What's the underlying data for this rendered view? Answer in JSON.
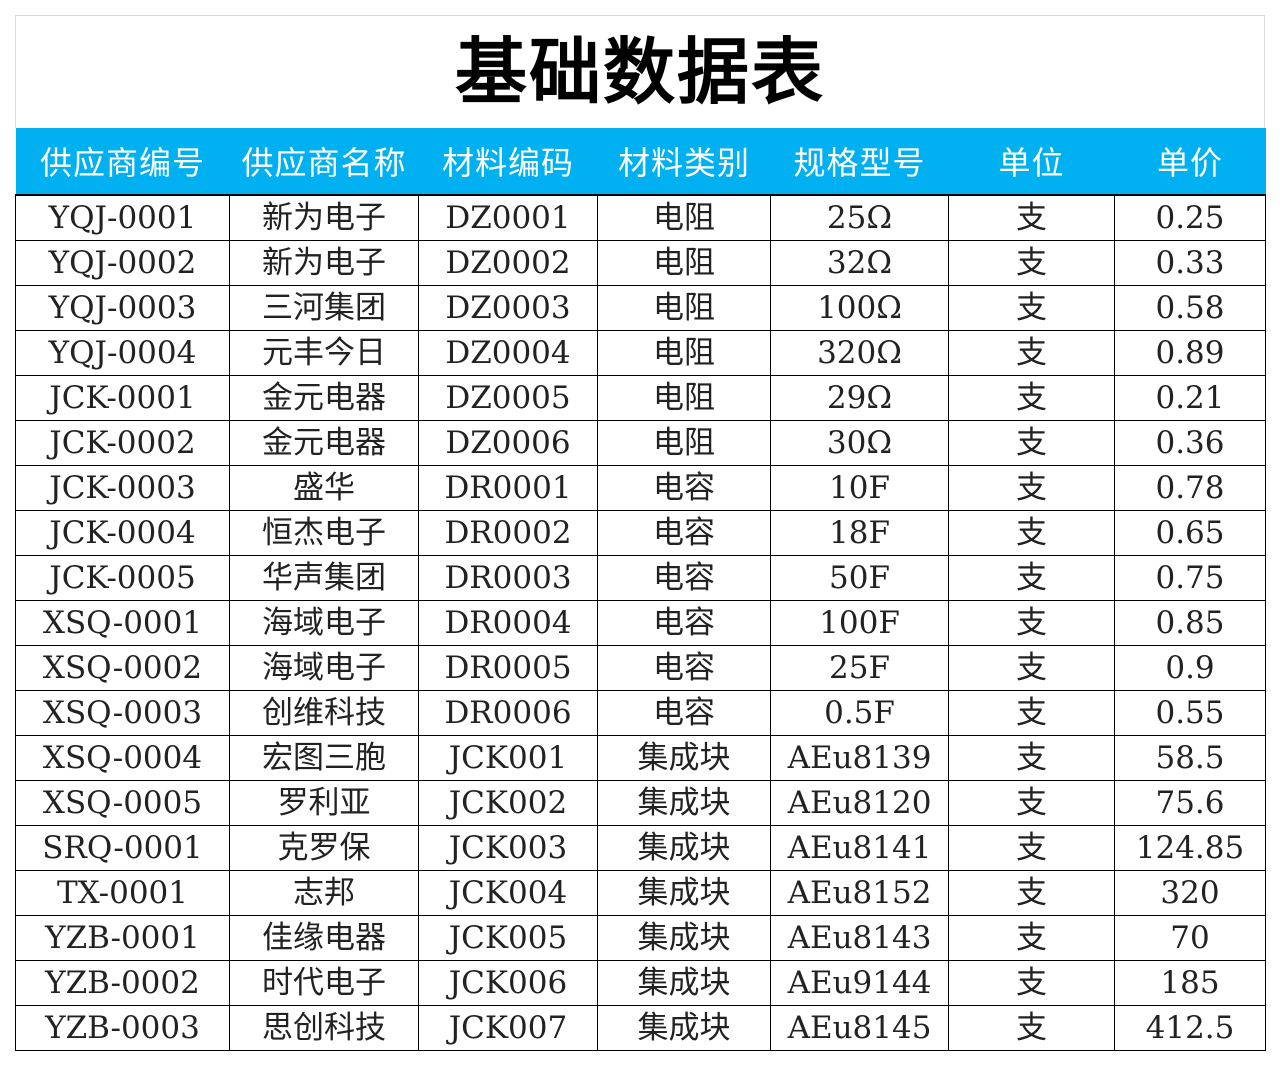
{
  "title": "基础数据表",
  "header": {
    "supplier_id": "供应商编号",
    "supplier_name": "供应商名称",
    "material_code": "材料编码",
    "material_type": "材料类别",
    "spec": "规格型号",
    "unit": "单位",
    "price": "单价"
  },
  "rows": [
    [
      "YQJ-0001",
      "新为电子",
      "DZ0001",
      "电阻",
      "25Ω",
      "支",
      "0.25"
    ],
    [
      "YQJ-0002",
      "新为电子",
      "DZ0002",
      "电阻",
      "32Ω",
      "支",
      "0.33"
    ],
    [
      "YQJ-0003",
      "三河集团",
      "DZ0003",
      "电阻",
      "100Ω",
      "支",
      "0.58"
    ],
    [
      "YQJ-0004",
      "元丰今日",
      "DZ0004",
      "电阻",
      "320Ω",
      "支",
      "0.89"
    ],
    [
      "JCK-0001",
      "金元电器",
      "DZ0005",
      "电阻",
      "29Ω",
      "支",
      "0.21"
    ],
    [
      "JCK-0002",
      "金元电器",
      "DZ0006",
      "电阻",
      "30Ω",
      "支",
      "0.36"
    ],
    [
      "JCK-0003",
      "盛华",
      "DR0001",
      "电容",
      "10F",
      "支",
      "0.78"
    ],
    [
      "JCK-0004",
      "恒杰电子",
      "DR0002",
      "电容",
      "18F",
      "支",
      "0.65"
    ],
    [
      "JCK-0005",
      "华声集团",
      "DR0003",
      "电容",
      "50F",
      "支",
      "0.75"
    ],
    [
      "XSQ-0001",
      "海域电子",
      "DR0004",
      "电容",
      "100F",
      "支",
      "0.85"
    ],
    [
      "XSQ-0002",
      "海域电子",
      "DR0005",
      "电容",
      "25F",
      "支",
      "0.9"
    ],
    [
      "XSQ-0003",
      "创维科技",
      "DR0006",
      "电容",
      "0.5F",
      "支",
      "0.55"
    ],
    [
      "XSQ-0004",
      "宏图三胞",
      "JCK001",
      "集成块",
      "AEu8139",
      "支",
      "58.5"
    ],
    [
      "XSQ-0005",
      "罗利亚",
      "JCK002",
      "集成块",
      "AEu8120",
      "支",
      "75.6"
    ],
    [
      "SRQ-0001",
      "克罗保",
      "JCK003",
      "集成块",
      "AEu8141",
      "支",
      "124.85"
    ],
    [
      "TX-0001",
      "志邦",
      "JCK004",
      "集成块",
      "AEu8152",
      "支",
      "320"
    ],
    [
      "YZB-0001",
      "佳缘电器",
      "JCK005",
      "集成块",
      "AEu8143",
      "支",
      "70"
    ],
    [
      "YZB-0002",
      "时代电子",
      "JCK006",
      "集成块",
      "AEu9144",
      "支",
      "185"
    ],
    [
      "YZB-0003",
      "思创科技",
      "JCK007",
      "集成块",
      "AEu8145",
      "支",
      "412.5"
    ]
  ],
  "colors": {
    "header_bg": "#00b0f0",
    "header_text": "#ffffff",
    "grid": "#000000"
  }
}
